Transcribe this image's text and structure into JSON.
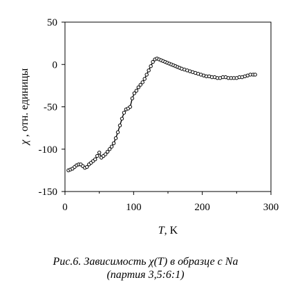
{
  "chart_data": {
    "type": "scatter",
    "xlabel_var": "T",
    "xlabel_unit": ", K",
    "ylabel_var": "χ",
    "ylabel_rest": " , отн. единицы",
    "xlim": [
      0,
      300
    ],
    "ylim": [
      -150,
      50
    ],
    "xticks": [
      0,
      100,
      200,
      300
    ],
    "yticks": [
      -150,
      -100,
      -50,
      0,
      50
    ],
    "grid": false,
    "marker": "open-circle",
    "x": [
      5,
      8,
      11,
      14,
      17,
      20,
      23,
      26,
      29,
      32,
      35,
      38,
      41,
      44,
      47,
      50,
      53,
      56,
      59,
      62,
      65,
      68,
      71,
      74,
      77,
      80,
      83,
      86,
      89,
      92,
      95,
      98,
      101,
      104,
      107,
      110,
      113,
      116,
      119,
      122,
      125,
      128,
      131,
      134,
      137,
      140,
      143,
      146,
      149,
      152,
      155,
      158,
      161,
      164,
      167,
      170,
      174,
      178,
      182,
      186,
      190,
      194,
      198,
      202,
      206,
      210,
      214,
      218,
      222,
      226,
      230,
      234,
      238,
      242,
      246,
      250,
      254,
      258,
      262,
      266,
      270,
      274,
      277
    ],
    "y": [
      -125,
      -124,
      -123,
      -121,
      -119,
      -118,
      -118,
      -120,
      -122,
      -121,
      -118,
      -116,
      -114,
      -112,
      -108,
      -104,
      -110,
      -108,
      -106,
      -103,
      -100,
      -97,
      -93,
      -87,
      -80,
      -72,
      -64,
      -57,
      -53,
      -52,
      -50,
      -40,
      -34,
      -31,
      -27,
      -24,
      -21,
      -17,
      -12,
      -7,
      -2,
      3,
      6,
      7,
      6,
      5,
      4,
      3,
      2,
      1,
      0,
      -1,
      -2,
      -3,
      -4,
      -5,
      -6,
      -7,
      -8,
      -9,
      -10,
      -11,
      -12,
      -13,
      -14,
      -14,
      -15,
      -15,
      -16,
      -16,
      -15,
      -15,
      -16,
      -16,
      -16,
      -16,
      -15,
      -15,
      -14,
      -13,
      -12,
      -12,
      -12
    ]
  },
  "caption": {
    "line1_prefix": "Рис.6. Зависимость ",
    "line1_symbol": "χ(T)",
    "line1_suffix": " в образце с Na",
    "line2": "(партия 3,5:6:1)"
  }
}
